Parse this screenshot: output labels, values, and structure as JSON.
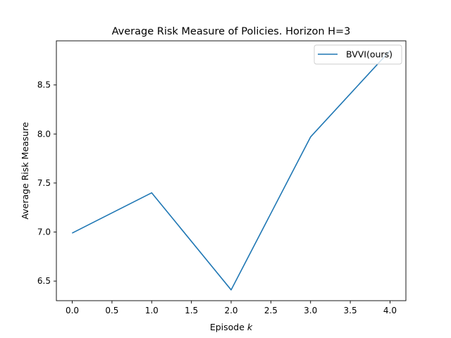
{
  "chart_data": {
    "type": "line",
    "title": "Average Risk Measure of Policies. Horizon H=3",
    "xlabel": "Episode ",
    "xlabel_var": "k",
    "ylabel": "Average Risk Measure",
    "xlim": [
      -0.2,
      4.2
    ],
    "ylim": [
      6.3,
      8.95
    ],
    "x_ticks": [
      "0.0",
      "0.5",
      "1.0",
      "1.5",
      "2.0",
      "2.5",
      "3.0",
      "3.5",
      "4.0"
    ],
    "y_ticks": [
      "6.5",
      "7.0",
      "7.5",
      "8.0",
      "8.5"
    ],
    "grid": false,
    "legend_position": "top-right",
    "series": [
      {
        "name": "BVVI(ours)",
        "color": "#1f77b4",
        "x": [
          0,
          1,
          2,
          3,
          4
        ],
        "y": [
          6.99,
          7.4,
          6.41,
          7.97,
          8.85
        ]
      }
    ]
  }
}
